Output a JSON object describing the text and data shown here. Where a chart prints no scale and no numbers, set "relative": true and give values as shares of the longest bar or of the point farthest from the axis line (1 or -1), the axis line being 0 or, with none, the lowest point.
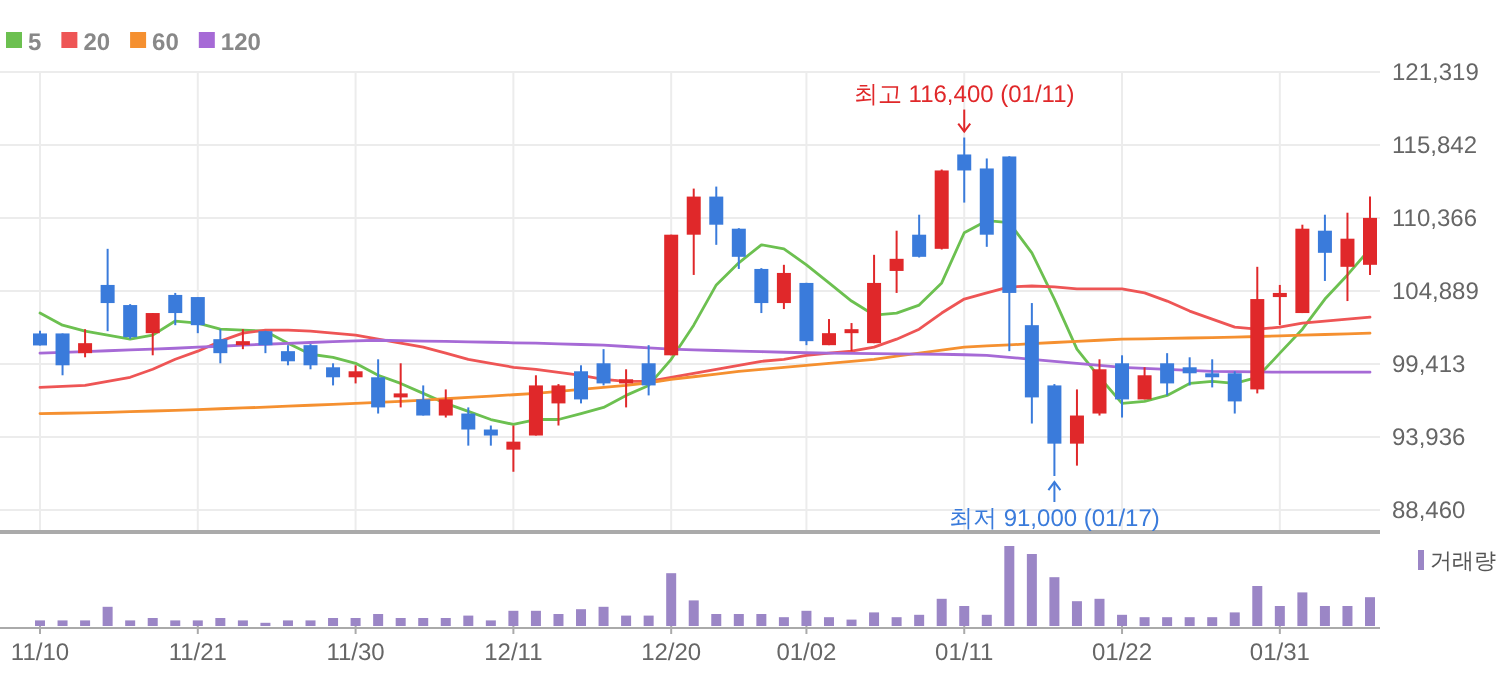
{
  "chart_data": [
    {
      "type": "candlestick",
      "categories": [
        "11/10",
        null,
        null,
        null,
        null,
        null,
        null,
        "11/21",
        null,
        null,
        null,
        null,
        null,
        null,
        "11/30",
        null,
        null,
        null,
        null,
        null,
        null,
        "12/11",
        null,
        null,
        null,
        null,
        null,
        null,
        "12/20",
        null,
        null,
        null,
        null,
        null,
        "01/02",
        null,
        null,
        null,
        null,
        null,
        null,
        "01/11",
        null,
        null,
        null,
        null,
        null,
        null,
        "01/22",
        null,
        null,
        null,
        null,
        null,
        null,
        "01/31",
        null,
        null,
        null,
        null
      ],
      "ohlc": [
        [
          101700,
          101900,
          100800,
          100800
        ],
        [
          101700,
          101700,
          98560,
          99310
        ],
        [
          100220,
          102020,
          99910,
          100970
        ],
        [
          105340,
          108050,
          101870,
          103980
        ],
        [
          103830,
          103900,
          101300,
          101420
        ],
        [
          101720,
          103230,
          100060,
          103230
        ],
        [
          104590,
          104740,
          102320,
          103230
        ],
        [
          104430,
          104430,
          101720,
          102320
        ],
        [
          101270,
          102020,
          99460,
          100220
        ],
        [
          100820,
          102020,
          100520,
          101120
        ],
        [
          101870,
          101900,
          100220,
          100820
        ],
        [
          100370,
          100820,
          99310,
          99610
        ],
        [
          100820,
          100900,
          99010,
          99310
        ],
        [
          99160,
          99460,
          97800,
          98410
        ],
        [
          98410,
          99310,
          97950,
          98860
        ],
        [
          98410,
          99760,
          95690,
          96150
        ],
        [
          96900,
          99460,
          96150,
          97200
        ],
        [
          96750,
          97800,
          95540,
          95540
        ],
        [
          95540,
          97500,
          95390,
          96750
        ],
        [
          95690,
          96150,
          93280,
          94490
        ],
        [
          94490,
          94790,
          93280,
          94040
        ],
        [
          92980,
          94790,
          91320,
          93580
        ],
        [
          94040,
          98560,
          94040,
          97800
        ],
        [
          96450,
          97900,
          94790,
          97800
        ],
        [
          98860,
          99310,
          96450,
          96750
        ],
        [
          99460,
          100520,
          97800,
          97950
        ],
        [
          97950,
          99010,
          96150,
          98260
        ],
        [
          99460,
          100820,
          97050,
          97800
        ],
        [
          100060,
          109110,
          100060,
          109110
        ],
        [
          109110,
          112570,
          106090,
          111970
        ],
        [
          111970,
          112720,
          108350,
          109860
        ],
        [
          109560,
          109600,
          106540,
          107450
        ],
        [
          106540,
          106600,
          103230,
          103980
        ],
        [
          103980,
          106850,
          103530,
          106240
        ],
        [
          105490,
          105500,
          100820,
          101120
        ],
        [
          100820,
          102780,
          100820,
          101720
        ],
        [
          101720,
          102480,
          100370,
          102020
        ],
        [
          100970,
          107600,
          100970,
          105490
        ],
        [
          106390,
          109410,
          104740,
          107300
        ],
        [
          109110,
          110610,
          107400,
          107450
        ],
        [
          108050,
          114000,
          108000,
          113930
        ],
        [
          115130,
          116400,
          111520,
          113930
        ],
        [
          114080,
          114830,
          108200,
          109110
        ],
        [
          114980,
          115000,
          100370,
          104740
        ],
        [
          102320,
          103980,
          94940,
          96900
        ],
        [
          97800,
          97900,
          91000,
          93430
        ],
        [
          93430,
          97500,
          91780,
          95540
        ],
        [
          95690,
          99760,
          95540,
          99010
        ],
        [
          99460,
          100060,
          95390,
          96750
        ],
        [
          96750,
          99160,
          96750,
          98560
        ],
        [
          99460,
          100220,
          97050,
          97950
        ],
        [
          99160,
          99910,
          97800,
          98710
        ],
        [
          98710,
          99760,
          97650,
          98410
        ],
        [
          98710,
          98860,
          95690,
          96600
        ],
        [
          97500,
          106700,
          97200,
          104280
        ],
        [
          104430,
          105340,
          102320,
          104740
        ],
        [
          103230,
          109860,
          103230,
          109560
        ],
        [
          109410,
          110610,
          105640,
          107750
        ],
        [
          106700,
          110760,
          104130,
          108810
        ],
        [
          106850,
          111970,
          106090,
          110370
        ]
      ],
      "colors": [
        "#3a7bdb",
        "#3a7bdb",
        "#e0282a",
        "#3a7bdb",
        "#3a7bdb",
        "#e0282a",
        "#3a7bdb",
        "#3a7bdb",
        "#3a7bdb",
        "#e0282a",
        "#3a7bdb",
        "#3a7bdb",
        "#3a7bdb",
        "#3a7bdb",
        "#e0282a",
        "#3a7bdb",
        "#e0282a",
        "#3a7bdb",
        "#e0282a",
        "#3a7bdb",
        "#3a7bdb",
        "#e0282a",
        "#e0282a",
        "#e0282a",
        "#3a7bdb",
        "#3a7bdb",
        "#e0282a",
        "#3a7bdb",
        "#e0282a",
        "#e0282a",
        "#3a7bdb",
        "#3a7bdb",
        "#3a7bdb",
        "#e0282a",
        "#3a7bdb",
        "#e0282a",
        "#e0282a",
        "#e0282a",
        "#e0282a",
        "#3a7bdb",
        "#e0282a",
        "#3a7bdb",
        "#3a7bdb",
        "#3a7bdb",
        "#3a7bdb",
        "#3a7bdb",
        "#e0282a",
        "#e0282a",
        "#3a7bdb",
        "#e0282a",
        "#3a7bdb",
        "#3a7bdb",
        "#3a7bdb",
        "#3a7bdb",
        "#e0282a",
        "#e0282a",
        "#e0282a",
        "#3a7bdb",
        "#e0282a",
        "#e0282a"
      ],
      "series": [
        {
          "name": "5",
          "type": "line",
          "color": "#6cc050",
          "values": [
            103230,
            102320,
            101870,
            101570,
            101270,
            101570,
            102630,
            102480,
            102020,
            101950,
            101870,
            100970,
            100140,
            99910,
            99460,
            98560,
            97950,
            97200,
            96450,
            95850,
            95240,
            94870,
            95240,
            95240,
            95690,
            96150,
            97050,
            97800,
            99760,
            102320,
            105340,
            107000,
            108350,
            108050,
            106850,
            105490,
            104130,
            103080,
            103230,
            103830,
            105490,
            109260,
            110160,
            110010,
            107750,
            104280,
            100520,
            98410,
            96450,
            96600,
            97050,
            97950,
            98110,
            97950,
            98410,
            100220,
            102020,
            104280,
            106090,
            108050
          ]
        },
        {
          "name": "20",
          "type": "line",
          "color": "#ee5555",
          "values": [
            97650,
            97730,
            97800,
            98110,
            98410,
            99010,
            99760,
            100370,
            101120,
            101720,
            101950,
            101950,
            101870,
            101720,
            101570,
            101270,
            100970,
            100670,
            100220,
            99760,
            99460,
            99160,
            99010,
            98780,
            98560,
            98260,
            98110,
            98110,
            98410,
            98710,
            99010,
            99310,
            99610,
            99760,
            100060,
            100220,
            100370,
            100670,
            101270,
            102020,
            103230,
            104280,
            104740,
            105190,
            105260,
            105190,
            105040,
            105040,
            105040,
            104740,
            104130,
            103380,
            102780,
            102170,
            102020,
            102170,
            102480,
            102630,
            102780,
            102930
          ]
        },
        {
          "name": "60",
          "type": "line",
          "color": "#f59030",
          "values": [
            95690,
            95710,
            95740,
            95780,
            95830,
            95880,
            95930,
            95990,
            96050,
            96110,
            96170,
            96240,
            96310,
            96380,
            96450,
            96530,
            96610,
            96700,
            96800,
            96900,
            97000,
            97100,
            97200,
            97350,
            97500,
            97650,
            97800,
            98000,
            98250,
            98450,
            98650,
            98850,
            99000,
            99150,
            99300,
            99450,
            99600,
            99760,
            99990,
            100220,
            100450,
            100670,
            100760,
            100840,
            100930,
            101020,
            101100,
            101190,
            101270,
            101300,
            101330,
            101360,
            101390,
            101420,
            101470,
            101520,
            101570,
            101620,
            101670,
            101720
          ]
        },
        {
          "name": "120",
          "type": "line",
          "color": "#a66ad6",
          "values": [
            100220,
            100280,
            100340,
            100400,
            100460,
            100520,
            100590,
            100670,
            100740,
            100820,
            100890,
            100950,
            101020,
            101080,
            101140,
            101190,
            101160,
            101130,
            101100,
            101070,
            101040,
            101000,
            100970,
            100920,
            100870,
            100820,
            100720,
            100620,
            100520,
            100470,
            100420,
            100370,
            100330,
            100290,
            100250,
            100220,
            100200,
            100180,
            100160,
            100150,
            100140,
            100100,
            100060,
            99910,
            99760,
            99610,
            99460,
            99310,
            99160,
            99080,
            99010,
            98930,
            98860,
            98840,
            98820,
            98790,
            98790,
            98790,
            98790,
            98790
          ]
        }
      ],
      "ylim": [
        86950,
        121319
      ],
      "yticks": [
        {
          "value": 88460,
          "label": "88,460"
        },
        {
          "value": 93936,
          "label": "93,936"
        },
        {
          "value": 99413,
          "label": "99,413"
        },
        {
          "value": 104889,
          "label": "104,889"
        },
        {
          "value": 110366,
          "label": "110,366"
        },
        {
          "value": 115842,
          "label": "115,842"
        },
        {
          "value": 121319,
          "label": "121,319"
        }
      ],
      "grid": true,
      "legend": "top left",
      "tick_labels": "y",
      "annotations": [
        {
          "text": "최고 116,400 (01/11)",
          "x": "01/11",
          "y": 116400
        },
        {
          "text": "최저 91,000 (01/17)",
          "y": 91000
        }
      ]
    },
    {
      "type": "bar",
      "relative": true,
      "legend": "top right",
      "categories": [
        "11/10",
        null,
        null,
        null,
        null,
        null,
        null,
        "11/21",
        null,
        null,
        null,
        null,
        null,
        null,
        "11/30",
        null,
        null,
        null,
        null,
        null,
        null,
        "12/11",
        null,
        null,
        null,
        null,
        null,
        null,
        "12/20",
        null,
        null,
        null,
        null,
        null,
        "01/02",
        null,
        null,
        null,
        null,
        null,
        null,
        "01/11",
        null,
        null,
        null,
        null,
        null,
        null,
        "01/22",
        null,
        null,
        null,
        null,
        null,
        null,
        "01/31",
        null,
        null,
        null,
        null
      ],
      "series": [
        {
          "name": "거래량",
          "color": "#9b86c6",
          "values": [
            0.07,
            0.07,
            0.07,
            0.24,
            0.07,
            0.1,
            0.07,
            0.07,
            0.1,
            0.07,
            0.04,
            0.07,
            0.07,
            0.1,
            0.1,
            0.15,
            0.1,
            0.1,
            0.1,
            0.13,
            0.07,
            0.19,
            0.19,
            0.15,
            0.21,
            0.24,
            0.13,
            0.13,
            0.66,
            0.32,
            0.15,
            0.15,
            0.15,
            0.11,
            0.19,
            0.11,
            0.08,
            0.17,
            0.11,
            0.14,
            0.34,
            0.25,
            0.14,
            1,
            0.9,
            0.61,
            0.31,
            0.34,
            0.14,
            0.11,
            0.11,
            0.11,
            0.11,
            0.17,
            0.5,
            0.25,
            0.42,
            0.25,
            0.25,
            0.36
          ]
        }
      ]
    }
  ]
}
